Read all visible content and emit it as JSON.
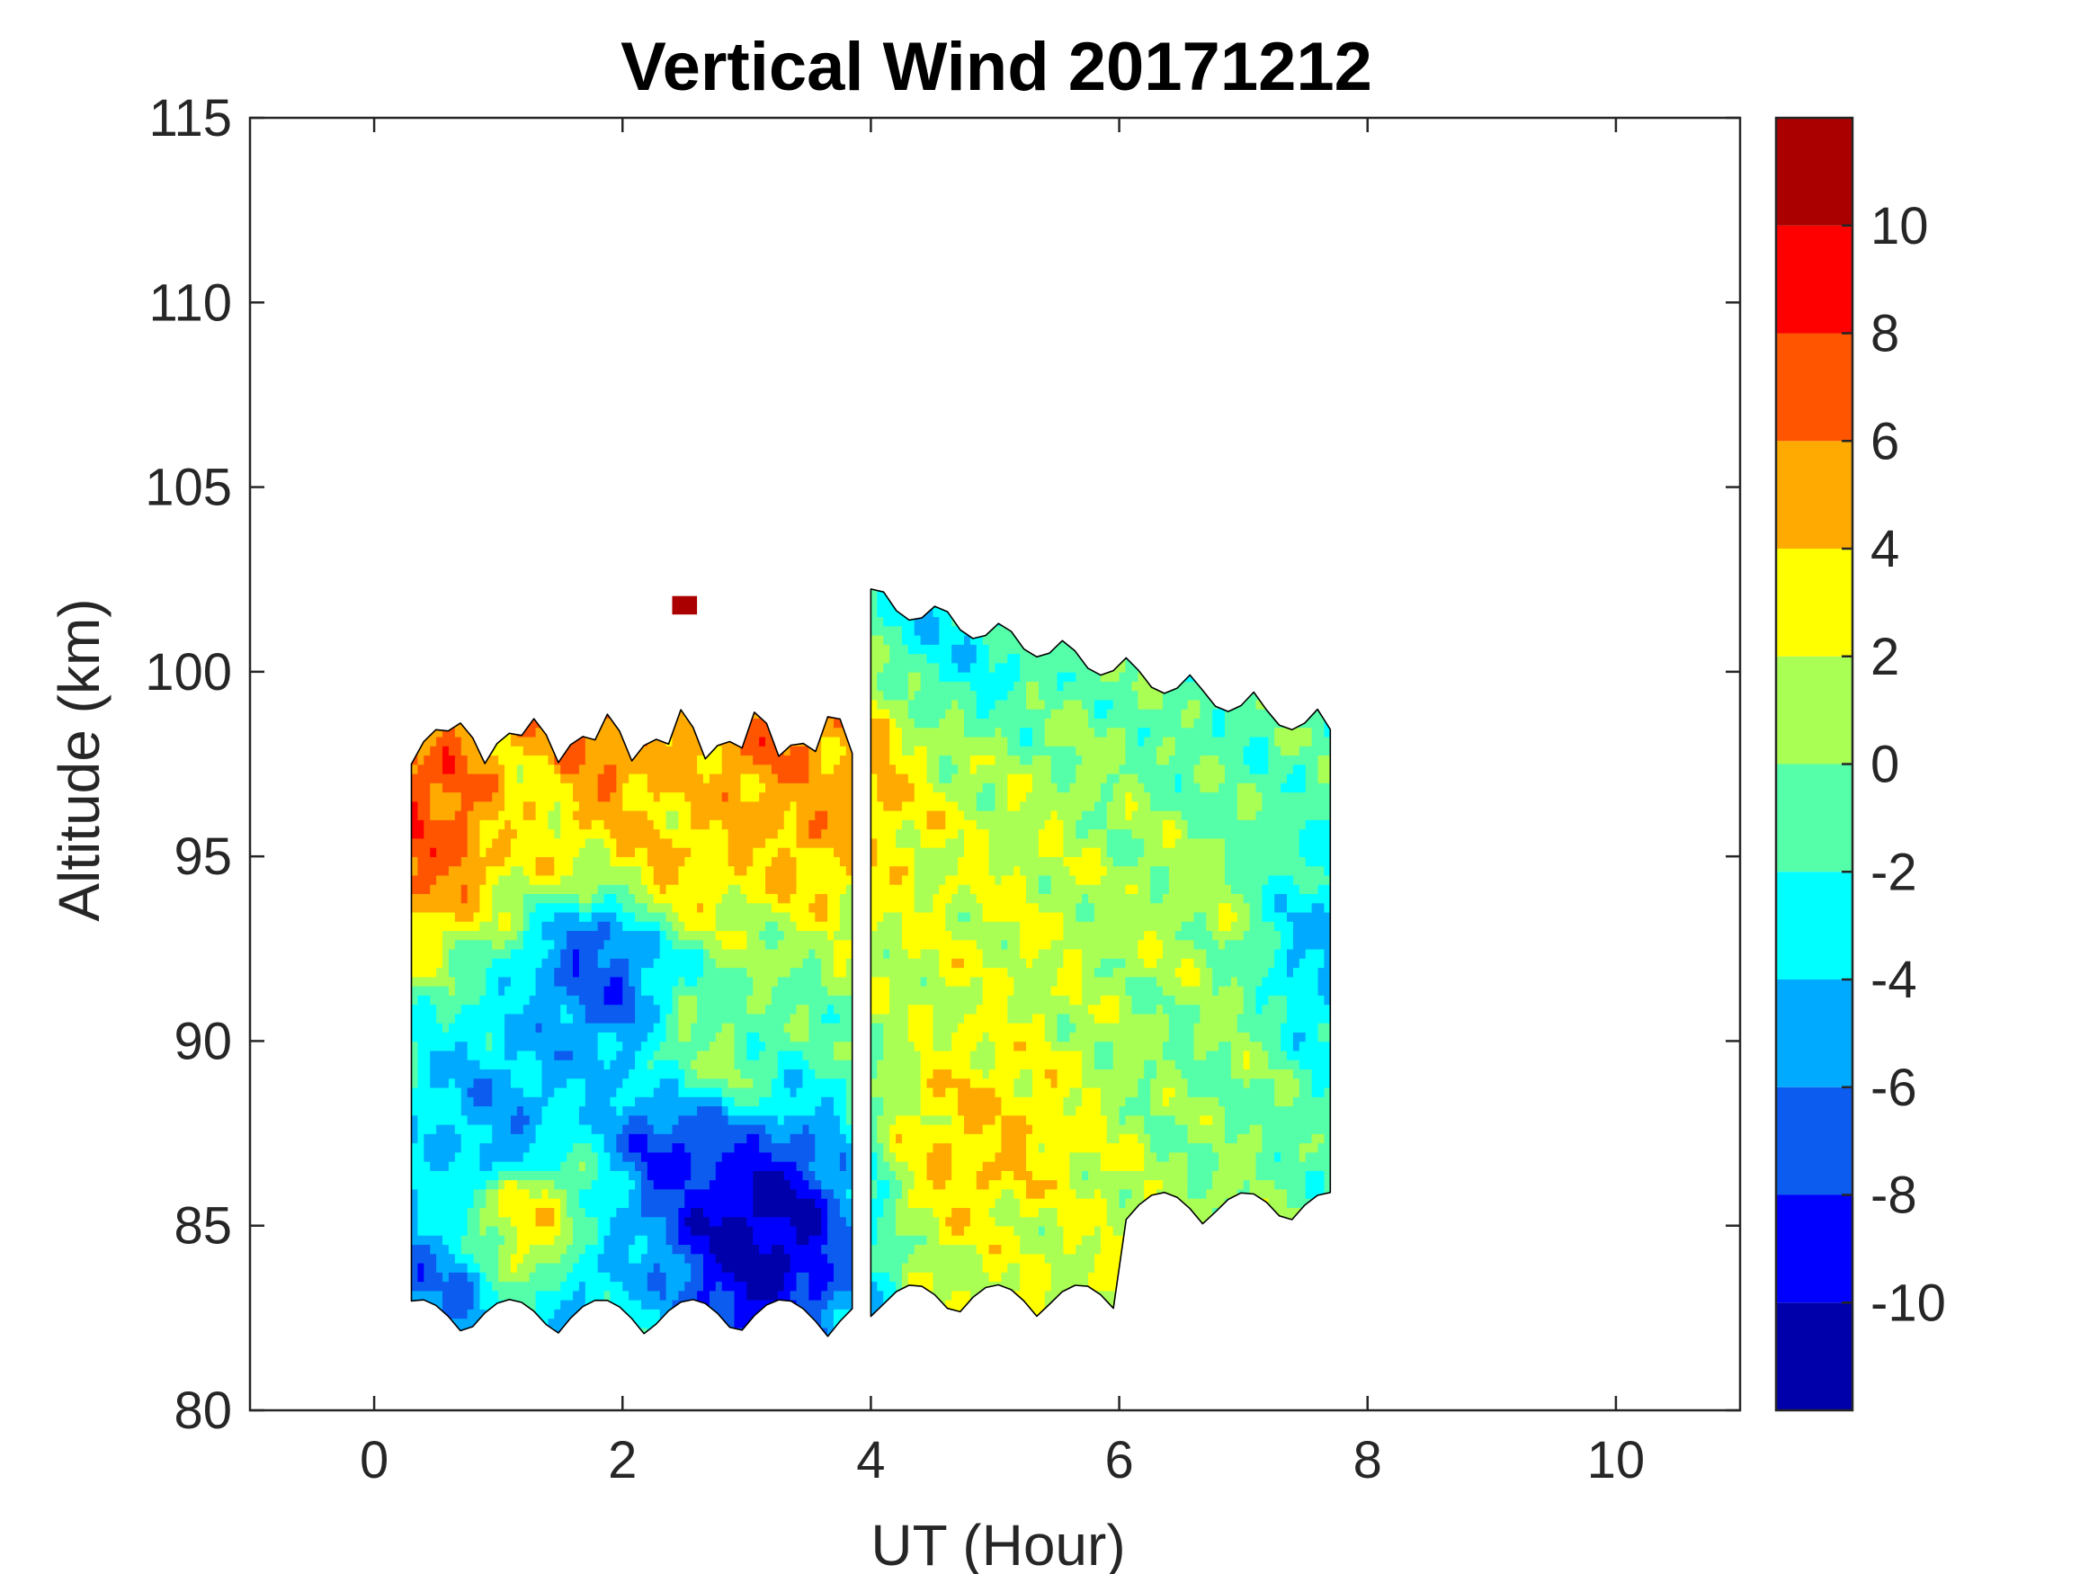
{
  "chart_data": {
    "type": "heatmap",
    "subtype": "filled-contour",
    "title": "Vertical Wind 20171212",
    "xlabel": "UT (Hour)",
    "ylabel": "Altitude (km)",
    "xlim": [
      -1,
      11
    ],
    "ylim": [
      80,
      115
    ],
    "xticks": [
      0,
      2,
      4,
      6,
      8,
      10
    ],
    "yticks": [
      80,
      85,
      90,
      95,
      100,
      105,
      110,
      115
    ],
    "grid": false,
    "colorbar": {
      "range": [
        -12,
        12
      ],
      "ticks": [
        -10,
        -8,
        -6,
        -4,
        -2,
        0,
        2,
        4,
        6,
        8,
        10
      ],
      "colors": [
        "#0000aa",
        "#0000ff",
        "#0d5cf0",
        "#00aaff",
        "#00ffff",
        "#55ffaa",
        "#aaff55",
        "#ffff00",
        "#ffaa00",
        "#ff5500",
        "#ff0000",
        "#aa0000"
      ],
      "placement": "right"
    },
    "data_extent": {
      "segments": [
        {
          "ut_start": 0.3,
          "ut_end": 3.85,
          "alt_bottom": 82,
          "alt_top": 99
        },
        {
          "ut_start": 4.0,
          "ut_end": 7.7,
          "alt_bottom": 82.5,
          "alt_top": 102.5
        }
      ],
      "isolated_cell": {
        "ut": 2.5,
        "alt": 101.8,
        "value": 11
      }
    },
    "features": [
      {
        "ut": 0.4,
        "alt": 96,
        "value": 7,
        "note": "positive"
      },
      {
        "ut": 1.7,
        "alt": 97.5,
        "value": 6
      },
      {
        "ut": 3.2,
        "alt": 98,
        "value": 6
      },
      {
        "ut": 3.5,
        "alt": 97,
        "value": 5
      },
      {
        "ut": 1.4,
        "alt": 96.2,
        "value": 3
      },
      {
        "ut": 2.4,
        "alt": 95.2,
        "value": 4
      },
      {
        "ut": 1.8,
        "alt": 91.8,
        "value": -7
      },
      {
        "ut": 1.0,
        "alt": 87.5,
        "value": -5
      },
      {
        "ut": 3.0,
        "alt": 85,
        "value": -11
      },
      {
        "ut": 2.5,
        "alt": 86.8,
        "value": -8
      },
      {
        "ut": 0.5,
        "alt": 83,
        "value": -6
      },
      {
        "ut": 1.8,
        "alt": 83,
        "value": -4
      },
      {
        "ut": 1.2,
        "alt": 85,
        "value": 3
      },
      {
        "ut": 2.7,
        "alt": 89.5,
        "value": 0
      },
      {
        "ut": 5.0,
        "alt": 93,
        "value": 2
      },
      {
        "ut": 4.9,
        "alt": 87,
        "value": 4
      },
      {
        "ut": 5.3,
        "alt": 84,
        "value": 2
      },
      {
        "ut": 6.5,
        "alt": 93,
        "value": 1
      },
      {
        "ut": 6.8,
        "alt": 90,
        "value": 0
      },
      {
        "ut": 7.6,
        "alt": 92,
        "value": -4
      },
      {
        "ut": 4.6,
        "alt": 101.5,
        "value": -3
      },
      {
        "ut": 7.0,
        "alt": 98.5,
        "value": -1
      }
    ]
  }
}
